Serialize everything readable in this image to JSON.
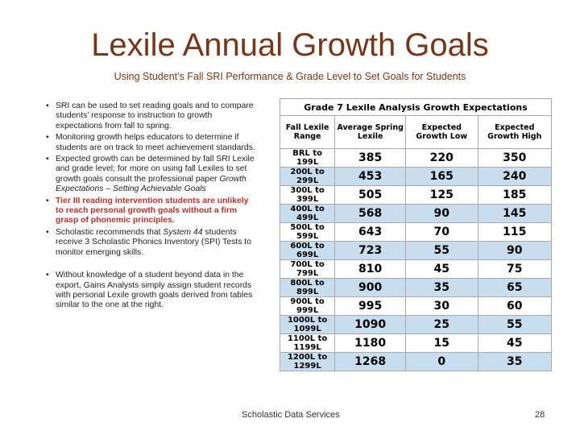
{
  "header": {
    "title": "Lexile Annual Growth Goals",
    "subtitle": "Using Student’s Fall SRI Performance & Grade Level to Set Goals for Students"
  },
  "bullets": [
    {
      "runs": [
        {
          "text": "SRI can be used to set reading goals and to compare students’ response to instruction to growth expectations from fall to spring.",
          "style": "normal"
        }
      ]
    },
    {
      "runs": [
        {
          "text": "Monitoring growth helps educators to determine if students are on track to meet achievement standards.",
          "style": "normal"
        }
      ]
    },
    {
      "runs": [
        {
          "text": "Expected growth can be determined by fall SRI Lexile and grade level; for more on using fall Lexiles to set growth goals consult the professional paper ",
          "style": "normal"
        },
        {
          "text": "Growth Expectations – Setting Achievable Goals",
          "style": "italic"
        }
      ]
    },
    {
      "runs": [
        {
          "text": "Tier III reading intervention students are unlikely to reach personal growth goals without a firm grasp of phonemic principles.",
          "style": "red-bold"
        }
      ]
    },
    {
      "runs": [
        {
          "text": "Scholastic recommends that ",
          "style": "normal"
        },
        {
          "text": "System 44",
          "style": "italic"
        },
        {
          "text": " students receive 3 Scholastic Phonics Inventory (SPI) Tests to monitor emerging skills.",
          "style": "normal"
        }
      ]
    },
    {
      "runs": [
        {
          "text": "Without knowledge of a student beyond data in the export, Gains Analysts simply assign student records with personal Lexile growth goals derived from tables similar to the one at the right.",
          "style": "normal"
        }
      ]
    }
  ],
  "table": {
    "title": "Grade 7 Lexile Analysis Growth Expectations",
    "headers": [
      "Fall Lexile Range",
      "Average Spring Lexile",
      "Expected Growth Low",
      "Expected Growth High"
    ],
    "rows": [
      [
        "BRL to 199L",
        385,
        220,
        350
      ],
      [
        "200L to 299L",
        453,
        165,
        240
      ],
      [
        "300L to 399L",
        505,
        125,
        185
      ],
      [
        "400L to 499L",
        568,
        90,
        145
      ],
      [
        "500L to 599L",
        643,
        70,
        115
      ],
      [
        "600L to 699L",
        723,
        55,
        90
      ],
      [
        "700L to 799L",
        810,
        45,
        75
      ],
      [
        "800L to 899L",
        900,
        35,
        65
      ],
      [
        "900L to 999L",
        995,
        30,
        60
      ],
      [
        "1000L to 1099L",
        1090,
        25,
        55
      ],
      [
        "1100L to 1199L",
        1180,
        15,
        45
      ],
      [
        "1200L to 1299L",
        1268,
        0,
        35
      ]
    ]
  },
  "footer": {
    "source": "Scholastic Data Services",
    "page": "28"
  }
}
